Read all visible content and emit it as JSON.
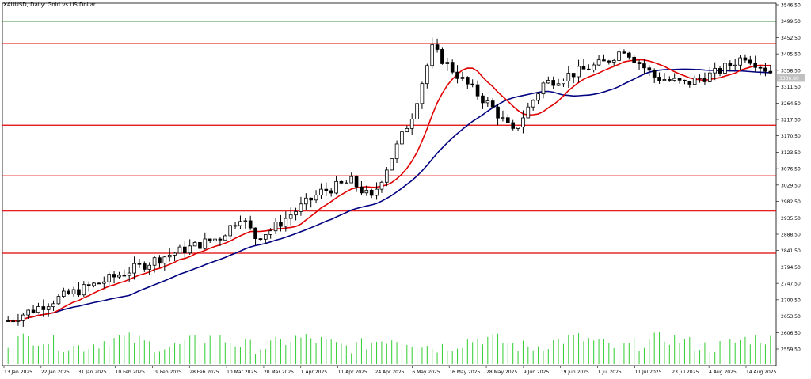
{
  "chart_data": {
    "type": "candlestick",
    "title": "XAUUSD, Daily: Gold vs US Dollar",
    "ylim": [
      2559.5,
      3546.5
    ],
    "price_ticks": [
      "3546.50",
      "3499.50",
      "3452.50",
      "3405.50",
      "3358.50",
      "3311.50",
      "3264.50",
      "3217.50",
      "3170.50",
      "3123.50",
      "3076.50",
      "3029.50",
      "2982.50",
      "2935.50",
      "2888.50",
      "2841.50",
      "2794.50",
      "2747.50",
      "2700.50",
      "2653.50",
      "2606.50",
      "2559.50"
    ],
    "date_labels": [
      "13 Jan 2025",
      "22 Jan 2025",
      "31 Jan 2025",
      "10 Feb 2025",
      "19 Feb 2025",
      "28 Feb 2025",
      "10 Mar 2025",
      "20 Mar 2025",
      "1 Apr 2025",
      "11 Apr 2025",
      "24 Apr 2025",
      "6 May 2025",
      "16 May 2025",
      "28 May 2025",
      "9 Jun 2025",
      "19 Jun 2025",
      "1 Jul 2025",
      "11 Jul 2025",
      "23 Jul 2025",
      "4 Aug 2025",
      "14 Aug 2025"
    ],
    "current_price_label": "3336.80",
    "levels": [
      {
        "price": 3499.5,
        "color": "#006400"
      },
      {
        "price": 3435.0,
        "color": "#e00000"
      },
      {
        "price": 3201.0,
        "color": "#e00000"
      },
      {
        "price": 3056.0,
        "color": "#e00000"
      },
      {
        "price": 2955.0,
        "color": "#e00000"
      },
      {
        "price": 2834.0,
        "color": "#e00000"
      }
    ],
    "ma_colors": {
      "fast": "#e00000",
      "slow": "#000080"
    },
    "bars": {
      "count": 152,
      "start": 2640,
      "waypoints": [
        [
          0,
          2640
        ],
        [
          10,
          2705
        ],
        [
          20,
          2760
        ],
        [
          30,
          2820
        ],
        [
          42,
          2880
        ],
        [
          46,
          2940
        ],
        [
          49,
          2880
        ],
        [
          52,
          2900
        ],
        [
          56,
          2945
        ],
        [
          62,
          3010
        ],
        [
          68,
          3040
        ],
        [
          72,
          2990
        ],
        [
          76,
          3110
        ],
        [
          80,
          3230
        ],
        [
          84,
          3420
        ],
        [
          90,
          3330
        ],
        [
          96,
          3250
        ],
        [
          100,
          3180
        ],
        [
          106,
          3320
        ],
        [
          112,
          3350
        ],
        [
          118,
          3380
        ],
        [
          122,
          3420
        ],
        [
          128,
          3340
        ],
        [
          134,
          3320
        ],
        [
          140,
          3350
        ],
        [
          146,
          3400
        ],
        [
          152,
          3345
        ]
      ],
      "volume_profile": "rising-midyear"
    },
    "volume_ylim": [
      0,
      100
    ],
    "grid": false,
    "legend": "none"
  }
}
